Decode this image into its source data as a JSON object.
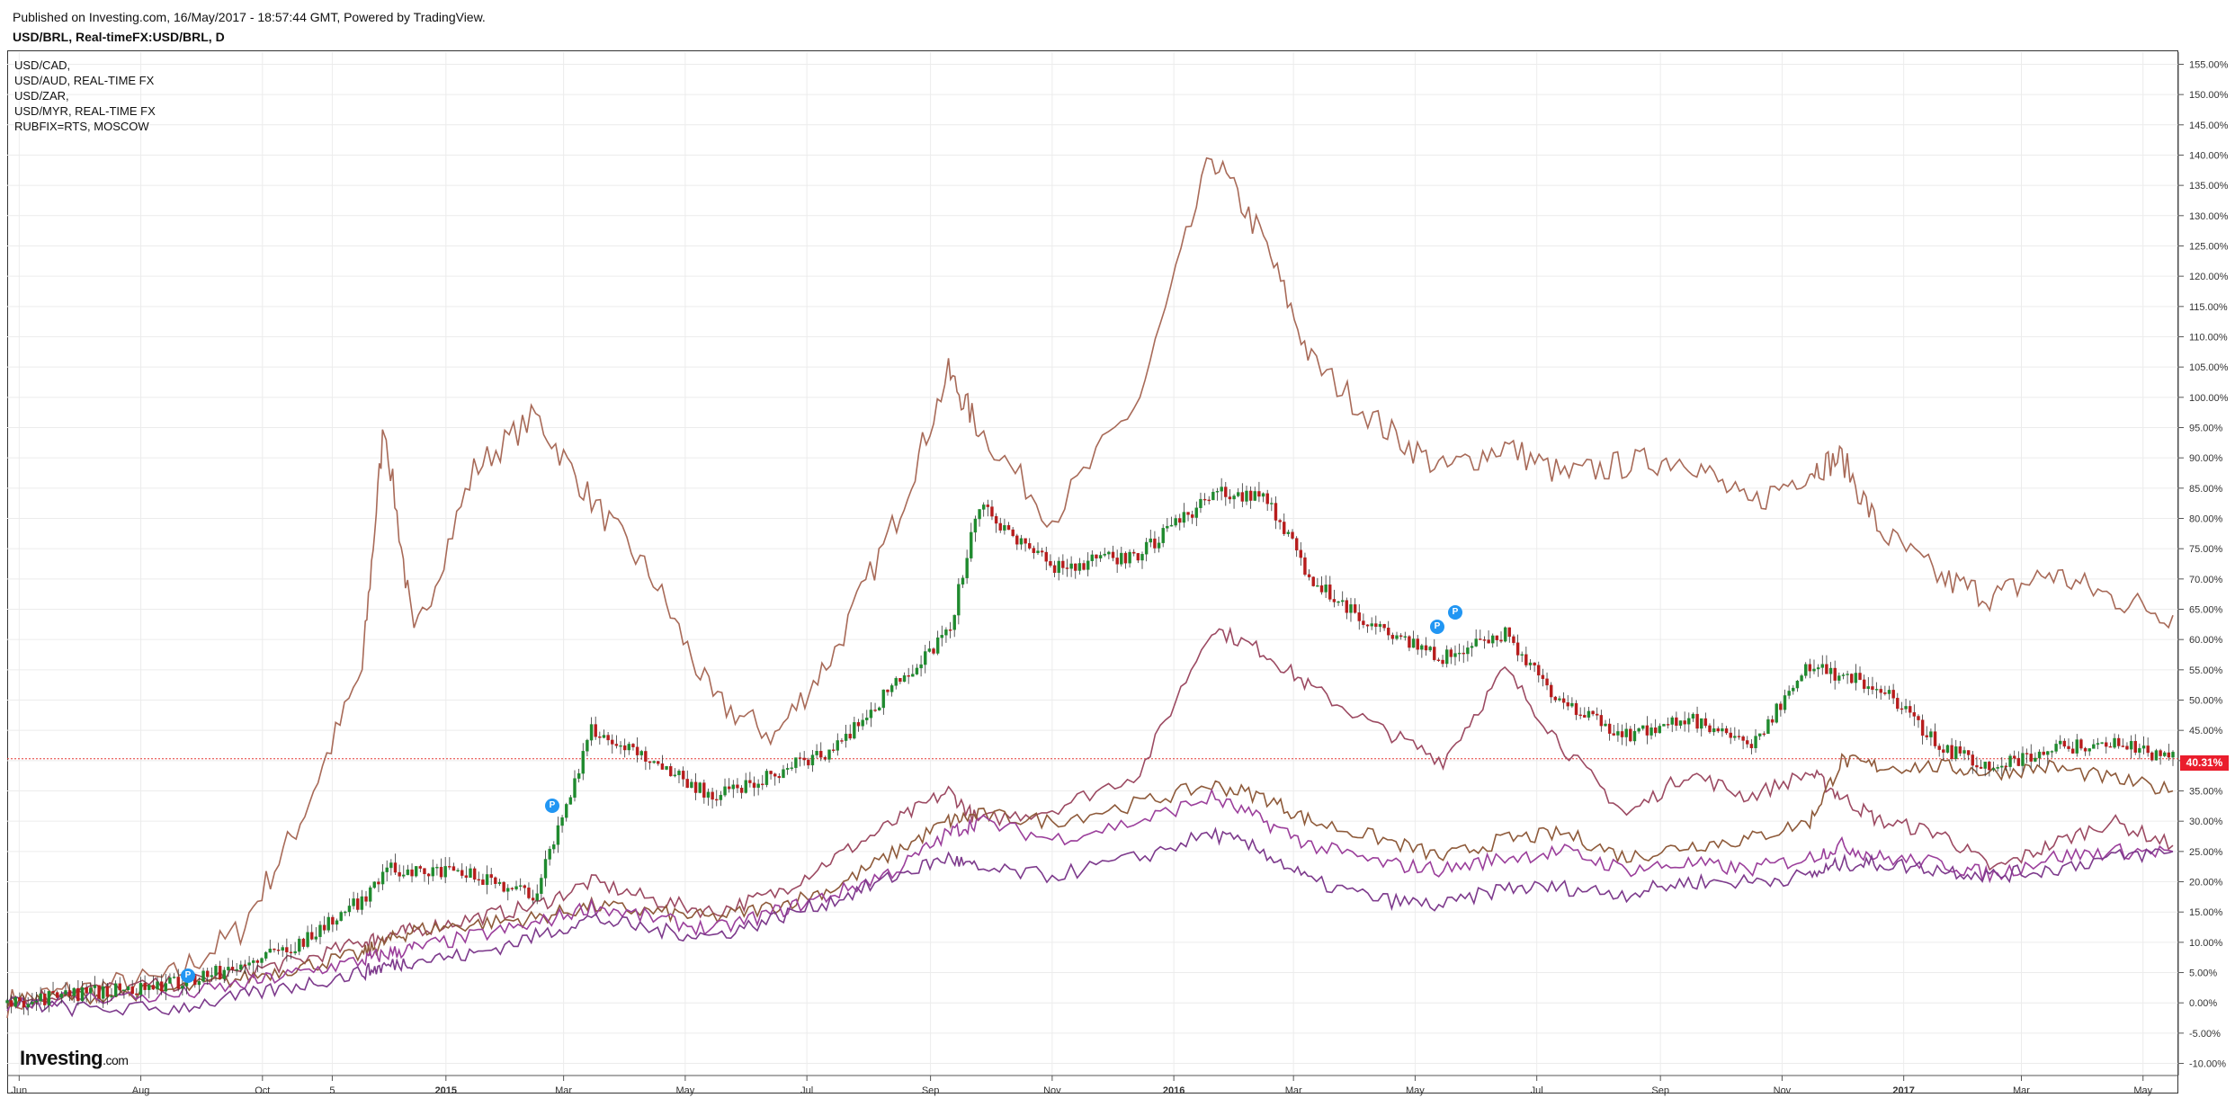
{
  "header": {
    "published": "Published on Investing.com, 16/May/2017 - 18:57:44 GMT, Powered by TradingView.",
    "symbol": "USD/BRL, Real-timeFX:USD/BRL, D"
  },
  "legend": [
    "USD/CAD,",
    "USD/AUD, REAL-TIME FX",
    "USD/ZAR,",
    "USD/MYR, REAL-TIME FX",
    "RUBFIX=RTS, MOSCOW"
  ],
  "logo": {
    "text": "Investing",
    "suffix": ".com"
  },
  "pins": [
    "P",
    "P",
    "P"
  ],
  "current_badge": "40.31%",
  "colors": {
    "up": "#1f8a2e",
    "down": "#b71c1c",
    "rub": "#a86a58",
    "zar": "#9c4a62",
    "cad": "#8e5a3a",
    "aud": "#9b3f9b",
    "myr": "#7d3a8c",
    "grid": "#ececec",
    "axis": "#555555",
    "lastline": "#e53935"
  },
  "chart_data": {
    "type": "line",
    "ylim": [
      -12,
      157
    ],
    "y_ticks": [
      -10,
      -5,
      0,
      5,
      10,
      15,
      20,
      25,
      30,
      35,
      40,
      45,
      50,
      55,
      60,
      65,
      70,
      75,
      80,
      85,
      90,
      95,
      100,
      105,
      110,
      115,
      120,
      125,
      130,
      135,
      140,
      145,
      150,
      155
    ],
    "y_tick_labels": [
      "-10.00%",
      "-5.00%",
      "0.00%",
      "5.00%",
      "10.00%",
      "15.00%",
      "20.00%",
      "25.00%",
      "30.00%",
      "35.00%",
      "40.00%",
      "45.00%",
      "50.00%",
      "55.00%",
      "60.00%",
      "65.00%",
      "70.00%",
      "75.00%",
      "80.00%",
      "85.00%",
      "90.00%",
      "95.00%",
      "100.00%",
      "105.00%",
      "110.00%",
      "115.00%",
      "120.00%",
      "125.00%",
      "130.00%",
      "135.00%",
      "140.00%",
      "145.00%",
      "150.00%",
      "155.00%"
    ],
    "x_tick_labels": [
      "Jun",
      "Aug",
      "Oct",
      "5",
      "2015",
      "Mar",
      "May",
      "Jul",
      "Sep",
      "Nov",
      "2016",
      "Mar",
      "May",
      "Jul",
      "Sep",
      "Nov",
      "2017",
      "Mar",
      "May"
    ],
    "x_tick_bold": [
      false,
      false,
      false,
      false,
      true,
      false,
      false,
      false,
      false,
      false,
      true,
      false,
      false,
      false,
      false,
      false,
      true,
      false,
      false
    ],
    "x": [
      "2014-05-26",
      "2014-06-30",
      "2014-08-15",
      "2014-09-20",
      "2014-10-20",
      "2014-11-20",
      "2014-12-01",
      "2014-12-16",
      "2015-01-15",
      "2015-02-15",
      "2015-03-15",
      "2015-04-15",
      "2015-05-15",
      "2015-06-15",
      "2015-07-15",
      "2015-08-15",
      "2015-09-10",
      "2015-09-25",
      "2015-11-01",
      "2015-12-15",
      "2016-01-20",
      "2016-02-15",
      "2016-03-10",
      "2016-04-15",
      "2016-05-15",
      "2016-06-15",
      "2016-07-15",
      "2016-08-15",
      "2016-09-15",
      "2016-10-15",
      "2016-11-15",
      "2016-12-01",
      "2016-12-20",
      "2017-01-20",
      "2017-02-15",
      "2017-03-15",
      "2017-04-15",
      "2017-05-16"
    ],
    "series": [
      {
        "values": [
          0,
          1.5,
          3,
          6,
          10,
          17,
          22,
          22,
          21,
          18,
          45,
          40,
          34,
          38,
          42,
          53,
          61,
          82,
          72,
          74,
          84,
          84,
          70,
          61,
          57,
          61,
          49,
          44,
          47,
          42,
          56,
          54,
          52,
          42,
          39,
          42,
          43,
          40.31
        ]
      },
      {
        "values": [
          0,
          2,
          4,
          12,
          30,
          55,
          96,
          60,
          88,
          97,
          83,
          70,
          50,
          44,
          58,
          80,
          104,
          95,
          80,
          100,
          140,
          126,
          106,
          95,
          88,
          92,
          87,
          89,
          90,
          82,
          88,
          90,
          78,
          70,
          67,
          71,
          67,
          64
        ]
      },
      {
        "values": [
          0,
          2,
          3,
          5,
          7,
          10,
          11,
          12,
          14,
          16,
          20,
          17,
          15,
          18,
          24,
          30,
          35,
          30,
          32,
          38,
          62,
          58,
          52,
          45,
          40,
          55,
          42,
          31,
          38,
          34,
          38,
          34,
          30,
          28,
          22,
          26,
          30,
          26
        ]
      },
      {
        "values": [
          0,
          1,
          2,
          4,
          6,
          8,
          10,
          12,
          13,
          14,
          16,
          15,
          14,
          16,
          19,
          25,
          30,
          31,
          30,
          33,
          36,
          34,
          30,
          27,
          24,
          27,
          28,
          24,
          26,
          27,
          30,
          40,
          39,
          39,
          38,
          39,
          37,
          35
        ]
      },
      {
        "values": [
          0,
          1,
          1,
          3,
          5,
          7,
          8,
          9,
          11,
          13,
          16,
          14,
          12,
          15,
          18,
          22,
          28,
          30,
          27,
          30,
          34,
          30,
          26,
          23,
          22,
          24,
          25,
          22,
          23,
          22,
          24,
          26,
          24,
          23,
          21,
          24,
          25,
          25
        ]
      },
      {
        "values": [
          0,
          -1,
          -1,
          1,
          3,
          5,
          6,
          7,
          8,
          11,
          14,
          12,
          11,
          14,
          17,
          21,
          24,
          22,
          21,
          24,
          28,
          25,
          20,
          17,
          16,
          19,
          19,
          18,
          20,
          20,
          21,
          23,
          23,
          22,
          21,
          22,
          24,
          25
        ]
      }
    ]
  }
}
